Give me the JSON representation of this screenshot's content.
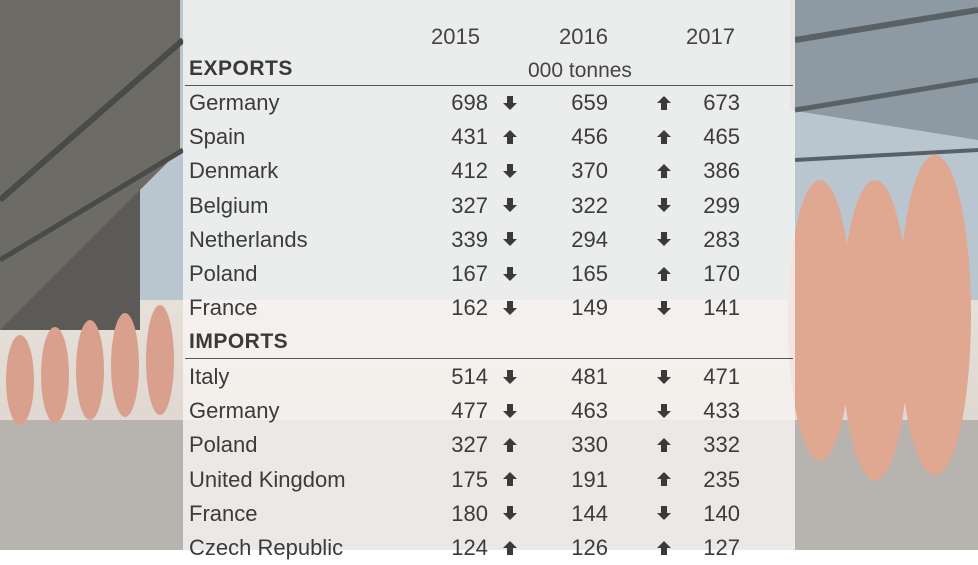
{
  "columns": {
    "years": [
      "2015",
      "2016",
      "2017"
    ],
    "unit": "000 tonnes"
  },
  "sections": [
    {
      "title": "EXPORTS",
      "rows": [
        {
          "country": "Germany",
          "y2015": "698",
          "arrow1": "down",
          "y2016": "659",
          "arrow2": "up",
          "y2017": "673"
        },
        {
          "country": "Spain",
          "y2015": "431",
          "arrow1": "up",
          "y2016": "456",
          "arrow2": "up",
          "y2017": "465"
        },
        {
          "country": "Denmark",
          "y2015": "412",
          "arrow1": "down",
          "y2016": "370",
          "arrow2": "up",
          "y2017": "386"
        },
        {
          "country": "Belgium",
          "y2015": "327",
          "arrow1": "down",
          "y2016": "322",
          "arrow2": "down",
          "y2017": "299"
        },
        {
          "country": "Netherlands",
          "y2015": "339",
          "arrow1": "down",
          "y2016": "294",
          "arrow2": "down",
          "y2017": "283"
        },
        {
          "country": "Poland",
          "y2015": "167",
          "arrow1": "down",
          "y2016": "165",
          "arrow2": "up",
          "y2017": "170"
        },
        {
          "country": "France",
          "y2015": "162",
          "arrow1": "down",
          "y2016": "149",
          "arrow2": "down",
          "y2017": "141"
        }
      ]
    },
    {
      "title": "IMPORTS",
      "rows": [
        {
          "country": "Italy",
          "y2015": "514",
          "arrow1": "down",
          "y2016": "481",
          "arrow2": "down",
          "y2017": "471"
        },
        {
          "country": "Germany",
          "y2015": "477",
          "arrow1": "down",
          "y2016": "463",
          "arrow2": "down",
          "y2017": "433"
        },
        {
          "country": "Poland",
          "y2015": "327",
          "arrow1": "up",
          "y2016": "330",
          "arrow2": "up",
          "y2017": "332"
        },
        {
          "country": "United Kingdom",
          "y2015": "175",
          "arrow1": "up",
          "y2016": "191",
          "arrow2": "up",
          "y2017": "235"
        },
        {
          "country": "France",
          "y2015": "180",
          "arrow1": "down",
          "y2016": "144",
          "arrow2": "down",
          "y2017": "140"
        },
        {
          "country": "Czech Republic",
          "y2015": "124",
          "arrow1": "up",
          "y2016": "126",
          "arrow2": "up",
          "y2017": "127"
        }
      ]
    }
  ],
  "chart_data": {
    "type": "table",
    "unit": "000 tonnes",
    "columns": [
      "2015",
      "2016",
      "2017"
    ],
    "tables": [
      {
        "title": "EXPORTS",
        "rows": [
          {
            "label": "Germany",
            "values": [
              698,
              659,
              673
            ],
            "trends": [
              "down",
              "up"
            ]
          },
          {
            "label": "Spain",
            "values": [
              431,
              456,
              465
            ],
            "trends": [
              "up",
              "up"
            ]
          },
          {
            "label": "Denmark",
            "values": [
              412,
              370,
              386
            ],
            "trends": [
              "down",
              "up"
            ]
          },
          {
            "label": "Belgium",
            "values": [
              327,
              322,
              299
            ],
            "trends": [
              "down",
              "down"
            ]
          },
          {
            "label": "Netherlands",
            "values": [
              339,
              294,
              283
            ],
            "trends": [
              "down",
              "down"
            ]
          },
          {
            "label": "Poland",
            "values": [
              167,
              165,
              170
            ],
            "trends": [
              "down",
              "up"
            ]
          },
          {
            "label": "France",
            "values": [
              162,
              149,
              141
            ],
            "trends": [
              "down",
              "down"
            ]
          }
        ]
      },
      {
        "title": "IMPORTS",
        "rows": [
          {
            "label": "Italy",
            "values": [
              514,
              481,
              471
            ],
            "trends": [
              "down",
              "down"
            ]
          },
          {
            "label": "Germany",
            "values": [
              477,
              463,
              433
            ],
            "trends": [
              "down",
              "down"
            ]
          },
          {
            "label": "Poland",
            "values": [
              327,
              330,
              332
            ],
            "trends": [
              "up",
              "up"
            ]
          },
          {
            "label": "United Kingdom",
            "values": [
              175,
              191,
              235
            ],
            "trends": [
              "up",
              "up"
            ]
          },
          {
            "label": "France",
            "values": [
              180,
              144,
              140
            ],
            "trends": [
              "down",
              "down"
            ]
          },
          {
            "label": "Czech Republic",
            "values": [
              124,
              126,
              127
            ],
            "trends": [
              "up",
              "up"
            ]
          }
        ]
      }
    ]
  }
}
